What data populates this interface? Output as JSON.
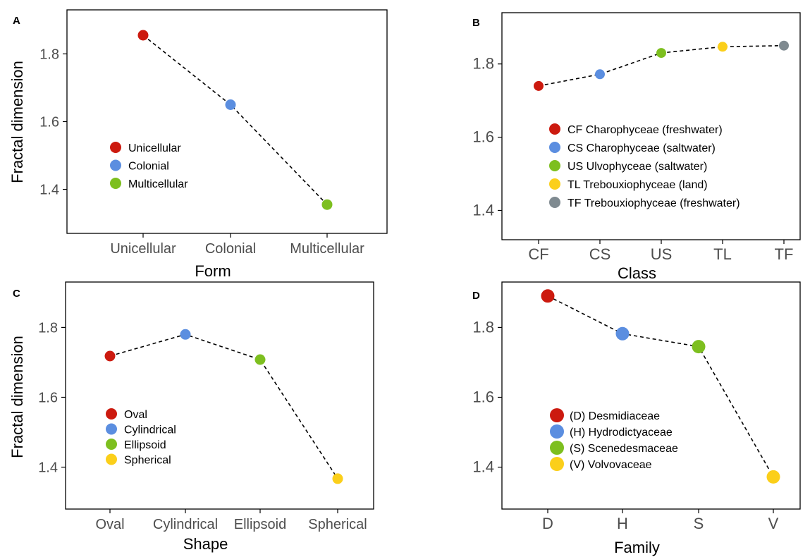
{
  "chart_data": [
    {
      "panel_label": "A",
      "type": "line",
      "xlabel": "Form",
      "ylabel": "Fractal dimension",
      "categories": [
        "Unicellular",
        "Colonial",
        "Multicellular"
      ],
      "values": [
        1.855,
        1.65,
        1.355
      ],
      "colors": [
        "#cc1a0f",
        "#5b8ee0",
        "#7dbf1f"
      ],
      "ylim": [
        1.27,
        1.93
      ],
      "yticks": [
        1.4,
        1.6,
        1.8
      ],
      "ytick_labels": [
        "1.4",
        "1.6",
        "1.8"
      ],
      "legend": {
        "position": "center-left",
        "entries": [
          {
            "label": "Unicellular",
            "color": "#cc1a0f"
          },
          {
            "label": "Colonial",
            "color": "#5b8ee0"
          },
          {
            "label": "Multicellular",
            "color": "#7dbf1f"
          }
        ]
      }
    },
    {
      "panel_label": "B",
      "type": "line",
      "xlabel": "Class",
      "ylabel": "",
      "categories": [
        "CF",
        "CS",
        "US",
        "TL",
        "TF"
      ],
      "values": [
        1.74,
        1.772,
        1.83,
        1.847,
        1.85
      ],
      "colors": [
        "#cc1a0f",
        "#5b8ee0",
        "#7dbf1f",
        "#fbcf1a",
        "#7f8a90"
      ],
      "ylim": [
        1.32,
        1.94
      ],
      "yticks": [
        1.4,
        1.6,
        1.8
      ],
      "ytick_labels": [
        "1.4",
        "1.6",
        "1.8"
      ],
      "legend": {
        "position": "center-left",
        "entries": [
          {
            "label": "CF Charophyceae (freshwater)",
            "color": "#cc1a0f"
          },
          {
            "label": "CS Charophyceae (saltwater)",
            "color": "#5b8ee0"
          },
          {
            "label": "US Ulvophyceae    (saltwater)",
            "color": "#7dbf1f"
          },
          {
            "label": "TL  Trebouxiophyceae (land)",
            "color": "#fbcf1a"
          },
          {
            "label": "TF  Trebouxiophyceae (freshwater)",
            "color": "#7f8a90"
          }
        ]
      }
    },
    {
      "panel_label": "C",
      "type": "line",
      "xlabel": "Shape",
      "ylabel": "Fractal dimension",
      "categories": [
        "Oval",
        "Cylindrical",
        "Ellipsoid",
        "Spherical"
      ],
      "values": [
        1.718,
        1.78,
        1.708,
        1.367
      ],
      "colors": [
        "#cc1a0f",
        "#5b8ee0",
        "#7dbf1f",
        "#fbcf1a"
      ],
      "ylim": [
        1.28,
        1.93
      ],
      "yticks": [
        1.4,
        1.6,
        1.8
      ],
      "ytick_labels": [
        "1.4",
        "1.6",
        "1.8"
      ],
      "legend": {
        "position": "center-left",
        "entries": [
          {
            "label": "Oval",
            "color": "#cc1a0f"
          },
          {
            "label": "Cylindrical",
            "color": "#5b8ee0"
          },
          {
            "label": "Ellipsoid",
            "color": "#7dbf1f"
          },
          {
            "label": "Spherical",
            "color": "#fbcf1a"
          }
        ]
      }
    },
    {
      "panel_label": "D",
      "type": "line",
      "xlabel": "Family",
      "ylabel": "",
      "categories": [
        "D",
        "H",
        "S",
        "V"
      ],
      "values": [
        1.89,
        1.782,
        1.745,
        1.372
      ],
      "colors": [
        "#cc1a0f",
        "#5b8ee0",
        "#7dbf1f",
        "#fbcf1a"
      ],
      "ylim": [
        1.28,
        1.93
      ],
      "yticks": [
        1.4,
        1.6,
        1.8
      ],
      "ytick_labels": [
        "1.4",
        "1.6",
        "1.8"
      ],
      "legend": {
        "position": "center-left",
        "entries": [
          {
            "label": "(D) Desmidiaceae",
            "color": "#cc1a0f"
          },
          {
            "label": "(H) Hydrodictyaceae",
            "color": "#5b8ee0"
          },
          {
            "label": "(S) Scenedesmaceae",
            "color": "#7dbf1f"
          },
          {
            "label": "(V) Volvovaceae",
            "color": "#fbcf1a"
          }
        ]
      }
    }
  ]
}
